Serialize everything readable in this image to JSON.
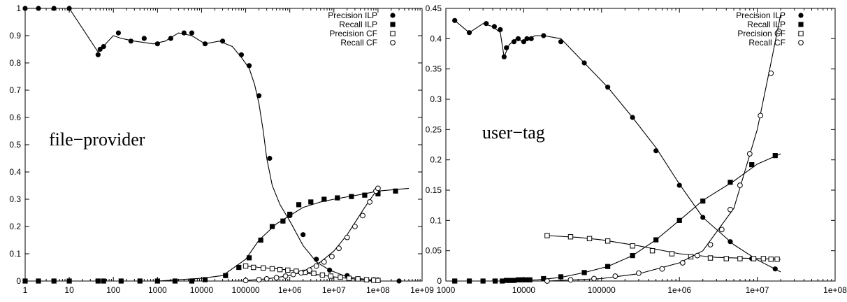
{
  "chart_data": [
    {
      "type": "line",
      "panel_label": "file−provider",
      "xscale": "log",
      "xlim": [
        1,
        1000000000
      ],
      "ylim": [
        0,
        1
      ],
      "x_ticks": [
        "1",
        "10",
        "100",
        "1000",
        "10000",
        "100000",
        "1e+06",
        "1e+07",
        "1e+08",
        "1e+09"
      ],
      "x_tick_values": [
        1,
        10,
        100,
        1000,
        10000,
        100000,
        1000000,
        10000000,
        100000000,
        1000000000
      ],
      "y_ticks": [
        "0",
        "0.1",
        "0.2",
        "0.3",
        "0.4",
        "0.5",
        "0.6",
        "0.7",
        "0.8",
        "0.9",
        "1"
      ],
      "y_tick_values": [
        0,
        0.1,
        0.2,
        0.3,
        0.4,
        0.5,
        0.6,
        0.7,
        0.8,
        0.9,
        1
      ],
      "legend_position": "top-right",
      "grid": false,
      "series": [
        {
          "name": "Precision ILP",
          "marker": "filled-circle",
          "line_x": [
            1,
            10,
            45,
            100,
            150,
            300,
            800,
            1500,
            3000,
            6000,
            12000,
            25000,
            50000,
            80000,
            120000,
            160000,
            200000,
            250000,
            300000,
            400000,
            600000,
            1000000,
            2000000,
            4000000,
            8000000,
            20000000,
            60000000,
            100000000
          ],
          "line_y": [
            1,
            1,
            0.84,
            0.9,
            0.89,
            0.88,
            0.87,
            0.88,
            0.91,
            0.9,
            0.87,
            0.88,
            0.86,
            0.82,
            0.78,
            0.72,
            0.65,
            0.55,
            0.45,
            0.35,
            0.28,
            0.22,
            0.13,
            0.07,
            0.04,
            0.015,
            0.005,
            0
          ],
          "x": [
            1,
            2,
            4.5,
            10,
            45,
            50,
            60,
            130,
            250,
            500,
            1000,
            2000,
            4000,
            6000,
            12000,
            30000,
            80000,
            120000,
            200000,
            350000,
            1000000,
            2000000,
            4000000,
            8000000,
            20000000,
            80000000,
            300000000
          ],
          "y": [
            1,
            1,
            1,
            1,
            0.83,
            0.85,
            0.86,
            0.91,
            0.88,
            0.89,
            0.87,
            0.89,
            0.91,
            0.91,
            0.87,
            0.88,
            0.83,
            0.79,
            0.68,
            0.45,
            0.24,
            0.17,
            0.08,
            0.04,
            0.02,
            0.005,
            0
          ]
        },
        {
          "name": "Recall ILP",
          "marker": "filled-square",
          "line_x": [
            1,
            1000,
            10000,
            30000,
            100000,
            200000,
            500000,
            1000000,
            2000000,
            5000000,
            10000000,
            50000000,
            100000000,
            500000000
          ],
          "line_y": [
            0,
            0,
            0.01,
            0.02,
            0.08,
            0.15,
            0.21,
            0.24,
            0.27,
            0.29,
            0.3,
            0.32,
            0.33,
            0.34
          ],
          "x": [
            1,
            2,
            4.5,
            10,
            45,
            60,
            150,
            400,
            1000,
            2500,
            6000,
            12000,
            35000,
            70000,
            120000,
            220000,
            400000,
            700000,
            1000000,
            1600000,
            3000000,
            6000000,
            12000000,
            25000000,
            50000000,
            100000000,
            250000000
          ],
          "y": [
            0,
            0,
            0,
            0,
            0,
            0,
            0,
            0,
            0,
            0,
            0,
            0.005,
            0.02,
            0.05,
            0.085,
            0.15,
            0.2,
            0.22,
            0.245,
            0.28,
            0.29,
            0.3,
            0.305,
            0.31,
            0.315,
            0.32,
            0.33
          ]
        },
        {
          "name": "Precision CF",
          "marker": "open-square",
          "line_x": [
            100000,
            200000,
            500000,
            1000000,
            2000000,
            5000000,
            10000000,
            20000000,
            50000000,
            100000000
          ],
          "line_y": [
            0.055,
            0.05,
            0.045,
            0.04,
            0.03,
            0.022,
            0.015,
            0.01,
            0.005,
            0
          ],
          "x": [
            100000,
            150000,
            250000,
            400000,
            600000,
            900000,
            1400000,
            2200000,
            3500000,
            5500000,
            8500000,
            14000000,
            22000000,
            35000000,
            55000000,
            80000000,
            100000000
          ],
          "y": [
            0.055,
            0.05,
            0.048,
            0.045,
            0.042,
            0.04,
            0.036,
            0.032,
            0.028,
            0.022,
            0.018,
            0.014,
            0.01,
            0.008,
            0.005,
            0.003,
            0.002
          ]
        },
        {
          "name": "Recall CF",
          "marker": "open-circle",
          "line_x": [
            100000,
            300000,
            1000000,
            2000000,
            5000000,
            10000000,
            20000000,
            50000000,
            100000000
          ],
          "line_y": [
            0.002,
            0.008,
            0.02,
            0.035,
            0.07,
            0.11,
            0.17,
            0.27,
            0.34
          ],
          "x": [
            100000,
            200000,
            300000,
            500000,
            800000,
            1200000,
            1800000,
            2800000,
            4000000,
            6000000,
            9000000,
            13000000,
            20000000,
            30000000,
            45000000,
            65000000,
            90000000,
            100000000
          ],
          "y": [
            0.002,
            0.005,
            0.008,
            0.012,
            0.018,
            0.024,
            0.03,
            0.04,
            0.055,
            0.07,
            0.09,
            0.12,
            0.16,
            0.2,
            0.24,
            0.29,
            0.33,
            0.34
          ]
        }
      ]
    },
    {
      "type": "line",
      "panel_label": "user−tag",
      "xscale": "log",
      "xlim": [
        1000,
        100000000
      ],
      "ylim": [
        0,
        0.45
      ],
      "x_ticks": [
        "1000",
        "10000",
        "100000",
        "1e+06",
        "1e+07",
        "1e+08"
      ],
      "x_tick_values": [
        1000,
        10000,
        100000,
        1000000,
        10000000,
        100000000
      ],
      "y_ticks": [
        "0",
        "0.05",
        "0.1",
        "0.15",
        "0.2",
        "0.25",
        "0.3",
        "0.35",
        "0.4",
        "0.45"
      ],
      "y_tick_values": [
        0,
        0.05,
        0.1,
        0.15,
        0.2,
        0.25,
        0.3,
        0.35,
        0.4,
        0.45
      ],
      "legend_position": "top-right",
      "grid": false,
      "series": [
        {
          "name": "Precision ILP",
          "marker": "filled-circle",
          "line_x": [
            1300,
            2000,
            3000,
            4000,
            5000,
            5600,
            6500,
            8000,
            10000,
            14000,
            18000,
            30000,
            60000,
            120000,
            250000,
            500000,
            1000000,
            2000000,
            5000000,
            10000000,
            20000000
          ],
          "line_y": [
            0.43,
            0.41,
            0.425,
            0.42,
            0.41,
            0.37,
            0.39,
            0.4,
            0.395,
            0.405,
            0.405,
            0.4,
            0.36,
            0.32,
            0.27,
            0.22,
            0.16,
            0.105,
            0.06,
            0.035,
            0.015
          ],
          "x": [
            1300,
            2000,
            3300,
            4200,
            5000,
            5600,
            6000,
            7500,
            8500,
            10000,
            11000,
            12500,
            18000,
            30000,
            60000,
            120000,
            250000,
            500000,
            1000000,
            2000000,
            4500000,
            8500000,
            17000000
          ],
          "y": [
            0.43,
            0.41,
            0.425,
            0.42,
            0.415,
            0.37,
            0.385,
            0.395,
            0.4,
            0.395,
            0.4,
            0.4,
            0.405,
            0.395,
            0.36,
            0.32,
            0.27,
            0.215,
            0.158,
            0.105,
            0.065,
            0.037,
            0.02
          ]
        },
        {
          "name": "Recall ILP",
          "marker": "filled-square",
          "line_x": [
            1300,
            5000,
            15000,
            30000,
            60000,
            120000,
            250000,
            500000,
            1000000,
            2000000,
            5000000,
            10000000,
            20000000
          ],
          "line_y": [
            0,
            0,
            0.002,
            0.006,
            0.014,
            0.024,
            0.042,
            0.068,
            0.1,
            0.133,
            0.165,
            0.193,
            0.21
          ],
          "x": [
            1300,
            2000,
            3000,
            4300,
            5300,
            6000,
            6700,
            7500,
            8500,
            9500,
            10500,
            12000,
            18000,
            30000,
            60000,
            120000,
            250000,
            500000,
            1000000,
            2000000,
            4500000,
            8500000,
            17000000
          ],
          "y": [
            0,
            0,
            0,
            0,
            0,
            0.001,
            0.001,
            0.001,
            0.002,
            0.002,
            0.002,
            0.002,
            0.004,
            0.007,
            0.014,
            0.024,
            0.042,
            0.068,
            0.1,
            0.132,
            0.163,
            0.192,
            0.207
          ]
        },
        {
          "name": "Precision CF",
          "marker": "open-square",
          "line_x": [
            20000,
            50000,
            100000,
            300000,
            1000000,
            3000000,
            10000000,
            20000000
          ],
          "line_y": [
            0.075,
            0.072,
            0.068,
            0.058,
            0.045,
            0.039,
            0.037,
            0.036
          ],
          "x": [
            20000,
            40000,
            70000,
            120000,
            250000,
            450000,
            800000,
            1400000,
            2500000,
            4000000,
            6000000,
            9000000,
            12000000,
            15000000,
            18000000
          ],
          "y": [
            0.075,
            0.073,
            0.07,
            0.066,
            0.058,
            0.05,
            0.045,
            0.04,
            0.038,
            0.037,
            0.037,
            0.037,
            0.037,
            0.036,
            0.036
          ]
        },
        {
          "name": "Recall CF",
          "marker": "open-circle",
          "line_x": [
            20000,
            100000,
            300000,
            1000000,
            2000000,
            5000000,
            10000000,
            15000000,
            20000000
          ],
          "line_y": [
            0,
            0.004,
            0.012,
            0.03,
            0.05,
            0.12,
            0.25,
            0.36,
            0.44
          ],
          "x": [
            20000,
            40000,
            80000,
            150000,
            300000,
            600000,
            1100000,
            1700000,
            2500000,
            3500000,
            4500000,
            6000000,
            8000000,
            11000000,
            15000000,
            19000000
          ],
          "y": [
            0,
            0.002,
            0.004,
            0.008,
            0.013,
            0.02,
            0.03,
            0.042,
            0.06,
            0.085,
            0.118,
            0.158,
            0.21,
            0.273,
            0.343,
            0.412
          ]
        }
      ]
    }
  ]
}
